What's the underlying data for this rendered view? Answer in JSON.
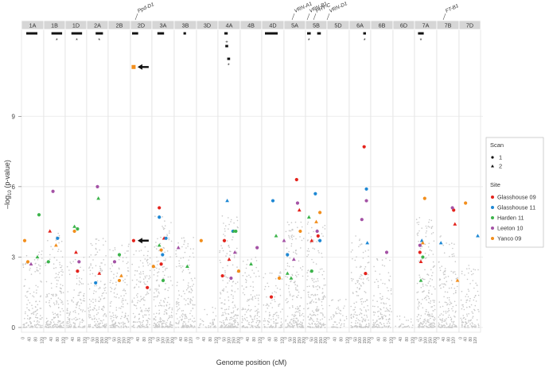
{
  "chart_data": {
    "type": "scatter",
    "xlabel": "Genome position (cM)",
    "ylabel_prefix": "–log",
    "ylabel_sub": "10",
    "ylabel_suffix": " (p-value)",
    "ylim": [
      0,
      12.6
    ],
    "yticks": [
      0,
      3,
      6,
      9
    ],
    "grid": true,
    "chromosomes": [
      "1A",
      "1B",
      "1D",
      "2A",
      "2B",
      "2D",
      "3A",
      "3B",
      "3D",
      "4A",
      "4B",
      "4D",
      "5A",
      "5B",
      "5D",
      "6A",
      "6B",
      "6D",
      "7A",
      "7B",
      "7D"
    ],
    "chromosome_lengths_cM": [
      120,
      120,
      120,
      200,
      200,
      120,
      200,
      150,
      120,
      200,
      120,
      120,
      200,
      200,
      120,
      200,
      120,
      120,
      200,
      150,
      150
    ],
    "gene_labels": [
      {
        "text": "Ppd-D1",
        "chrom": "2D"
      },
      {
        "text": "VRN-A1",
        "chrom": "5A"
      },
      {
        "text": "VRN-B1",
        "chrom": "5B"
      },
      {
        "text": "PHY-C",
        "chrom": "5B"
      },
      {
        "text": "VRN-D1",
        "chrom": "5D"
      },
      {
        "text": "FT-B1",
        "chrom": "7B"
      }
    ],
    "qtl_markers": [
      {
        "chrom": "1A",
        "from": 20,
        "to": 90,
        "star": false
      },
      {
        "chrom": "1B",
        "from": 40,
        "to": 110,
        "star": true
      },
      {
        "chrom": "1D",
        "from": 30,
        "to": 100,
        "star": true
      },
      {
        "chrom": "2A",
        "from": 80,
        "to": 160,
        "star": true
      },
      {
        "chrom": "2D",
        "from": 0,
        "to": 40,
        "star": false
      },
      {
        "chrom": "3A",
        "from": 40,
        "to": 110,
        "star": false
      },
      {
        "chrom": "3B",
        "from": 60,
        "to": 80,
        "star": false
      },
      {
        "chrom": "4A",
        "from": 50,
        "to": 85,
        "star": false
      },
      {
        "chrom": "4D",
        "from": 10,
        "to": 90,
        "star": false
      },
      {
        "chrom": "5B",
        "from": 0,
        "to": 40,
        "star": true
      },
      {
        "chrom": "5B",
        "from": 110,
        "to": 150,
        "star": false
      },
      {
        "chrom": "6A",
        "from": 135,
        "to": 165,
        "star": true
      },
      {
        "chrom": "7A",
        "from": 20,
        "to": 80,
        "star": true
      }
    ],
    "extra_qtl": [
      {
        "chrom": "4A",
        "from": 60,
        "to": 90,
        "row": 1,
        "plus": true
      },
      {
        "chrom": "4A",
        "from": 80,
        "to": 110,
        "row": 2,
        "star": true
      }
    ],
    "arrows": [
      {
        "chrom": "2D",
        "pos": 10,
        "y": 11.1
      },
      {
        "chrom": "2D",
        "pos": 10,
        "y": 3.7
      }
    ],
    "legend": {
      "scan_title": "Scan",
      "scan_items": [
        {
          "symbol": "circle",
          "label": "1"
        },
        {
          "symbol": "triangle",
          "label": "2"
        }
      ],
      "site_title": "Site",
      "site_items": [
        {
          "label": "Glasshouse 09",
          "color": "#e4231c"
        },
        {
          "label": "Glasshouse 11",
          "color": "#1e88d4"
        },
        {
          "label": "Harden 11",
          "color": "#3cb44b"
        },
        {
          "label": "Leeton 10",
          "color": "#a452a5"
        },
        {
          "label": "Yanco 09",
          "color": "#f28e1c"
        }
      ]
    },
    "series": [
      {
        "name": "Glasshouse 09",
        "color": "#e4231c",
        "points": [
          [
            "1B",
            30,
            4.1,
            "t"
          ],
          [
            "1D",
            60,
            3.2,
            "t"
          ],
          [
            "1D",
            70,
            2.4,
            "c"
          ],
          [
            "2A",
            120,
            2.3,
            "t"
          ],
          [
            "2D",
            10,
            3.7,
            "c"
          ],
          [
            "2D",
            100,
            1.7,
            "c"
          ],
          [
            "3A",
            60,
            5.1,
            "c"
          ],
          [
            "3A",
            80,
            2.7,
            "c"
          ],
          [
            "3A",
            110,
            3.8,
            "t"
          ],
          [
            "4A",
            50,
            3.7,
            "c"
          ],
          [
            "4A",
            30,
            2.2,
            "c"
          ],
          [
            "4A",
            100,
            2.9,
            "t"
          ],
          [
            "4D",
            50,
            1.3,
            "c"
          ],
          [
            "5A",
            120,
            6.3,
            "c"
          ],
          [
            "5A",
            150,
            5.0,
            "t"
          ],
          [
            "5B",
            50,
            3.7,
            "t"
          ],
          [
            "5B",
            120,
            3.9,
            "c"
          ],
          [
            "6A",
            145,
            7.7,
            "c"
          ],
          [
            "6A",
            160,
            2.3,
            "c"
          ],
          [
            "7A",
            40,
            3.2,
            "c"
          ],
          [
            "7A",
            50,
            2.8,
            "t"
          ],
          [
            "7B",
            130,
            4.4,
            "t"
          ],
          [
            "7B",
            120,
            5.0,
            "c"
          ]
        ]
      },
      {
        "name": "Glasshouse 11",
        "color": "#1e88d4",
        "points": [
          [
            "1B",
            80,
            3.8,
            "c"
          ],
          [
            "2A",
            80,
            1.9,
            "c"
          ],
          [
            "2D",
            200,
            3.1,
            "c"
          ],
          [
            "3A",
            60,
            4.7,
            "c"
          ],
          [
            "3A",
            130,
            3.8,
            "c"
          ],
          [
            "4A",
            80,
            5.4,
            "t"
          ],
          [
            "4A",
            140,
            4.1,
            "c"
          ],
          [
            "4D",
            60,
            5.4,
            "c"
          ],
          [
            "5A",
            20,
            3.1,
            "c"
          ],
          [
            "5B",
            90,
            5.7,
            "c"
          ],
          [
            "5B",
            140,
            3.7,
            "c"
          ],
          [
            "6A",
            170,
            5.9,
            "c"
          ],
          [
            "6A",
            180,
            3.6,
            "t"
          ],
          [
            "7A",
            60,
            3.7,
            "t"
          ],
          [
            "7B",
            20,
            3.6,
            "t"
          ],
          [
            "7D",
            140,
            3.9,
            "t"
          ]
        ]
      },
      {
        "name": "Harden 11",
        "color": "#3cb44b",
        "points": [
          [
            "1A",
            90,
            3.0,
            "t"
          ],
          [
            "1A",
            100,
            4.8,
            "c"
          ],
          [
            "1B",
            20,
            2.8,
            "c"
          ],
          [
            "1D",
            50,
            4.3,
            "t"
          ],
          [
            "1D",
            70,
            4.2,
            "c"
          ],
          [
            "2A",
            110,
            5.5,
            "t"
          ],
          [
            "2B",
            100,
            3.1,
            "c"
          ],
          [
            "3A",
            60,
            3.5,
            "t"
          ],
          [
            "3A",
            100,
            2.0,
            "c"
          ],
          [
            "3B",
            90,
            2.6,
            "t"
          ],
          [
            "4A",
            150,
            4.1,
            "t"
          ],
          [
            "4A",
            170,
            4.1,
            "c"
          ],
          [
            "4B",
            60,
            2.7,
            "t"
          ],
          [
            "4D",
            80,
            3.9,
            "t"
          ],
          [
            "5A",
            20,
            2.3,
            "t"
          ],
          [
            "5A",
            60,
            2.1,
            "t"
          ],
          [
            "5B",
            20,
            4.7,
            "t"
          ],
          [
            "5B",
            50,
            2.4,
            "c"
          ],
          [
            "7A",
            50,
            2.0,
            "t"
          ],
          [
            "7A",
            70,
            3.0,
            "c"
          ]
        ]
      },
      {
        "name": "Leeton 10",
        "color": "#a452a5",
        "points": [
          [
            "1A",
            50,
            2.7,
            "t"
          ],
          [
            "1B",
            50,
            5.8,
            "c"
          ],
          [
            "1D",
            80,
            2.8,
            "c"
          ],
          [
            "2A",
            100,
            6.0,
            "c"
          ],
          [
            "2B",
            50,
            2.8,
            "c"
          ],
          [
            "3B",
            20,
            3.4,
            "t"
          ],
          [
            "4A",
            120,
            2.1,
            "c"
          ],
          [
            "4A",
            160,
            3.2,
            "t"
          ],
          [
            "4B",
            100,
            3.4,
            "c"
          ],
          [
            "4D",
            130,
            3.7,
            "t"
          ],
          [
            "5A",
            130,
            5.3,
            "c"
          ],
          [
            "5A",
            90,
            2.9,
            "t"
          ],
          [
            "5B",
            110,
            4.1,
            "c"
          ],
          [
            "6A",
            120,
            4.6,
            "c"
          ],
          [
            "6A",
            170,
            5.4,
            "c"
          ],
          [
            "6B",
            90,
            3.2,
            "c"
          ],
          [
            "7A",
            40,
            3.5,
            "c"
          ],
          [
            "7B",
            110,
            5.1,
            "c"
          ]
        ]
      },
      {
        "name": "Yanco 09",
        "color": "#f28e1c",
        "points": [
          [
            "1A",
            10,
            3.7,
            "c"
          ],
          [
            "1A",
            30,
            2.8,
            "c"
          ],
          [
            "1B",
            70,
            3.5,
            "t"
          ],
          [
            "1D",
            50,
            4.1,
            "c"
          ],
          [
            "2B",
            100,
            2.0,
            "c"
          ],
          [
            "2B",
            120,
            2.2,
            "t"
          ],
          [
            "2D",
            10,
            11.1,
            "s"
          ],
          [
            "2D",
            140,
            2.6,
            "c"
          ],
          [
            "3A",
            80,
            3.3,
            "c"
          ],
          [
            "3D",
            20,
            3.7,
            "c"
          ],
          [
            "4A",
            200,
            2.4,
            "c"
          ],
          [
            "4D",
            100,
            2.1,
            "c"
          ],
          [
            "5A",
            160,
            4.1,
            "c"
          ],
          [
            "5B",
            100,
            4.5,
            "t"
          ],
          [
            "5B",
            140,
            4.9,
            "c"
          ],
          [
            "7A",
            90,
            5.5,
            "c"
          ],
          [
            "7A",
            70,
            3.6,
            "t"
          ],
          [
            "7B",
            150,
            2.0,
            "t"
          ],
          [
            "7D",
            40,
            5.3,
            "c"
          ]
        ]
      }
    ]
  }
}
